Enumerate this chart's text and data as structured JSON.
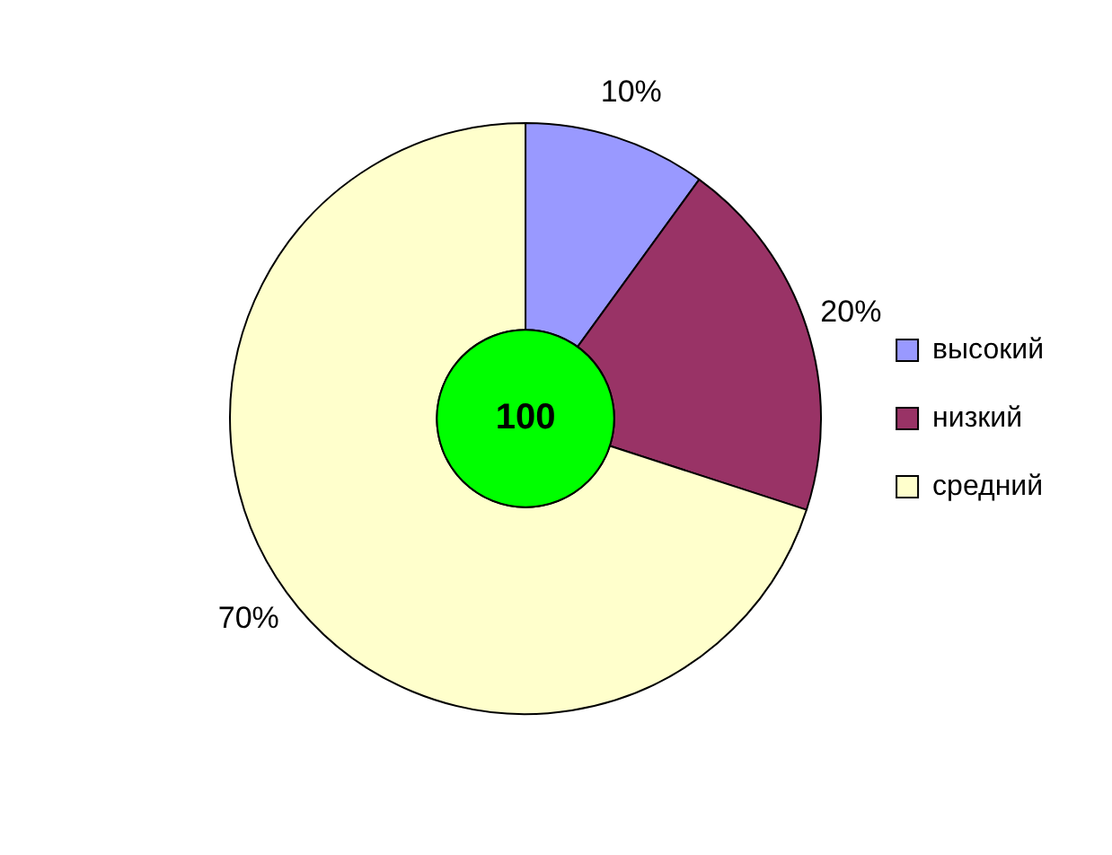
{
  "chart_data": {
    "type": "donut",
    "categories": [
      "высокий",
      "низкий",
      "средний"
    ],
    "values": [
      10,
      20,
      70
    ],
    "colors": [
      "#9999ff",
      "#993366",
      "#ffffcc"
    ],
    "value_labels": [
      "10%",
      "20%",
      "70%"
    ],
    "annotations": [
      "100"
    ],
    "legend": "right"
  }
}
